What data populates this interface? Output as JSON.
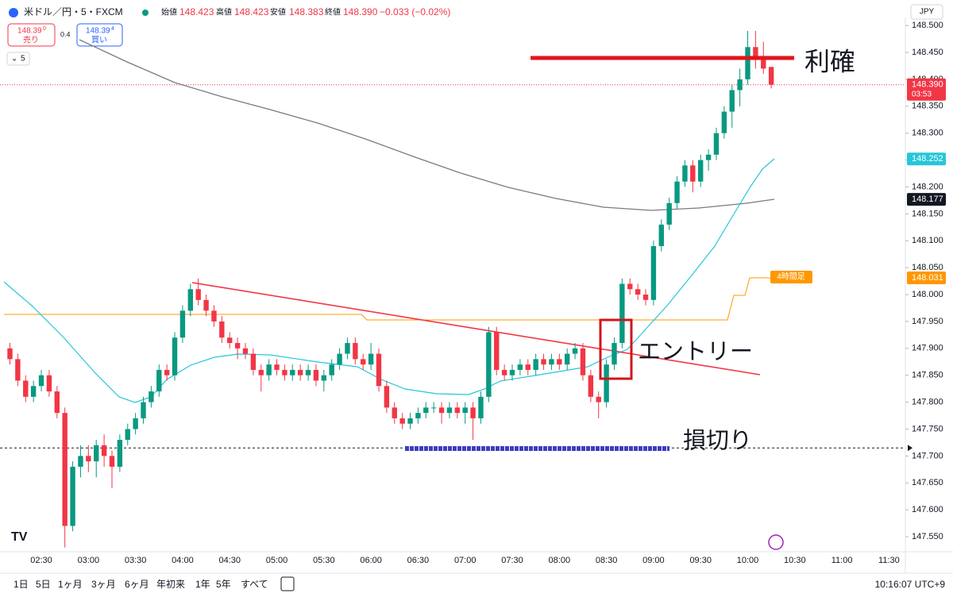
{
  "header": {
    "symbol": "米ドル／円・5・FXCM",
    "open_label": "始値",
    "open": "148.423",
    "high_label": "高値",
    "high": "148.423",
    "low_label": "安値",
    "low": "148.383",
    "close_label": "終値",
    "close": "148.390",
    "change": "−0.033 (−0.02%)",
    "sell_price": "148.39",
    "sell_pip": "0",
    "sell_label": "売り",
    "spread": "0.4",
    "buy_price": "148.39",
    "buy_pip": "4",
    "buy_label": "買い",
    "interval": "5",
    "currency": "JPY"
  },
  "toolbar": {
    "ranges": [
      "1日",
      "5日",
      "1ヶ月",
      "3ヶ月",
      "6ヶ月",
      "年初来",
      "1年",
      "5年",
      "すべて"
    ],
    "clock": "10:16:07 UTC+9"
  },
  "annotations": {
    "take_profit": "利確",
    "entry": "エントリー",
    "stop_loss": "損切り",
    "timeframe_tag": "4時間足"
  },
  "chart_data": {
    "type": "candlestick",
    "up_color": "#089981",
    "down_color": "#f23645",
    "grid": false,
    "categories": [
      null,
      null,
      null,
      null,
      "02:30",
      null,
      null,
      null,
      null,
      null,
      "03:00",
      null,
      null,
      null,
      null,
      null,
      "03:30",
      null,
      null,
      null,
      null,
      null,
      "04:00",
      null,
      null,
      null,
      null,
      null,
      "04:30",
      null,
      null,
      null,
      null,
      null,
      "05:00",
      null,
      null,
      null,
      null,
      null,
      "05:30",
      null,
      null,
      null,
      null,
      null,
      "06:00",
      null,
      null,
      null,
      null,
      null,
      "06:30",
      null,
      null,
      null,
      null,
      null,
      "07:00",
      null,
      null,
      null,
      null,
      null,
      "07:30",
      null,
      null,
      null,
      null,
      null,
      "08:00",
      null,
      null,
      null,
      null,
      null,
      "08:30",
      null,
      null,
      null,
      null,
      null,
      "09:00",
      null,
      null,
      null,
      null,
      null,
      "09:30",
      null,
      null,
      null,
      null,
      null,
      "10:00",
      null,
      null,
      null,
      null,
      null,
      "10:30",
      null,
      null,
      null,
      null,
      null,
      "11:00",
      null,
      null,
      null,
      null,
      null,
      "11:30"
    ],
    "open": [
      147.9,
      147.88,
      147.84,
      147.81,
      147.83,
      147.85,
      147.82,
      147.78,
      147.57,
      147.68,
      147.7,
      147.69,
      147.72,
      147.7,
      147.68,
      147.73,
      147.75,
      147.77,
      147.8,
      147.82,
      147.86,
      147.85,
      147.92,
      147.97,
      148.01,
      147.99,
      147.97,
      147.95,
      147.92,
      147.91,
      147.9,
      147.89,
      147.86,
      147.85,
      147.87,
      147.86,
      147.85,
      147.86,
      147.85,
      147.86,
      147.84,
      147.85,
      147.87,
      147.89,
      147.91,
      147.88,
      147.87,
      147.89,
      147.83,
      147.79,
      147.77,
      147.76,
      147.77,
      147.78,
      147.79,
      147.79,
      147.78,
      147.79,
      147.78,
      147.79,
      147.77,
      147.81,
      147.93,
      147.86,
      147.85,
      147.86,
      147.87,
      147.86,
      147.88,
      147.87,
      147.88,
      147.87,
      147.89,
      147.9,
      147.85,
      147.81,
      147.8,
      147.87,
      147.91,
      148.02,
      148.01,
      148.0,
      147.99,
      148.09,
      148.13,
      148.17,
      148.21,
      148.24,
      148.21,
      148.25,
      148.26,
      148.3,
      148.34,
      148.38,
      148.4,
      148.46,
      148.44,
      148.423,
      null,
      null,
      null,
      null,
      null,
      null,
      null,
      null,
      null,
      null,
      null,
      null,
      null,
      null,
      null
    ],
    "high": [
      147.91,
      147.89,
      147.85,
      147.84,
      147.86,
      147.86,
      147.83,
      147.79,
      147.69,
      147.72,
      147.72,
      147.73,
      147.74,
      147.71,
      147.74,
      147.76,
      147.78,
      147.81,
      147.83,
      147.87,
      147.87,
      147.93,
      147.98,
      148.02,
      148.03,
      148.0,
      147.98,
      147.96,
      147.93,
      147.92,
      147.91,
      147.9,
      147.87,
      147.88,
      147.88,
      147.87,
      147.87,
      147.87,
      147.87,
      147.87,
      147.86,
      147.88,
      147.9,
      147.92,
      147.92,
      147.89,
      147.91,
      147.9,
      147.84,
      147.8,
      147.78,
      147.78,
      147.79,
      147.8,
      147.8,
      147.8,
      147.8,
      147.8,
      147.8,
      147.8,
      147.82,
      147.94,
      147.94,
      147.87,
      147.87,
      147.88,
      147.88,
      147.89,
      147.89,
      147.89,
      147.89,
      147.9,
      147.91,
      147.91,
      147.86,
      147.82,
      147.88,
      147.92,
      148.03,
      148.03,
      148.02,
      148.01,
      148.1,
      148.14,
      148.18,
      148.22,
      148.25,
      148.25,
      148.26,
      148.27,
      148.31,
      148.35,
      148.39,
      148.42,
      148.49,
      148.49,
      148.47,
      148.423,
      null,
      null,
      null,
      null,
      null,
      null,
      null,
      null,
      null,
      null,
      null,
      null,
      null,
      null,
      null
    ],
    "low": [
      147.87,
      147.83,
      147.8,
      147.8,
      147.82,
      147.81,
      147.77,
      147.53,
      147.56,
      147.66,
      147.67,
      147.66,
      147.68,
      147.64,
      147.67,
      147.72,
      147.74,
      147.76,
      147.79,
      147.81,
      147.84,
      147.84,
      147.91,
      147.96,
      147.98,
      147.96,
      147.94,
      147.91,
      147.9,
      147.88,
      147.88,
      147.85,
      147.82,
      147.84,
      147.85,
      147.84,
      147.84,
      147.84,
      147.84,
      147.83,
      147.82,
      147.84,
      147.86,
      147.88,
      147.87,
      147.86,
      147.86,
      147.82,
      147.78,
      147.76,
      147.75,
      147.75,
      147.76,
      147.77,
      147.78,
      147.76,
      147.77,
      147.77,
      147.76,
      147.73,
      147.76,
      147.8,
      147.85,
      147.84,
      147.84,
      147.85,
      147.85,
      147.85,
      147.86,
      147.86,
      147.86,
      147.86,
      147.88,
      147.84,
      147.8,
      147.77,
      147.79,
      147.86,
      147.9,
      148.0,
      147.99,
      147.98,
      147.98,
      148.08,
      148.12,
      148.16,
      148.2,
      148.19,
      148.2,
      148.23,
      148.25,
      148.29,
      148.31,
      148.35,
      148.39,
      148.42,
      148.41,
      148.383,
      null,
      null,
      null,
      null,
      null,
      null,
      null,
      null,
      null,
      null,
      null,
      null,
      null,
      null,
      null
    ],
    "close": [
      147.88,
      147.84,
      147.81,
      147.83,
      147.85,
      147.82,
      147.78,
      147.57,
      147.68,
      147.7,
      147.69,
      147.72,
      147.7,
      147.68,
      147.73,
      147.75,
      147.77,
      147.8,
      147.82,
      147.86,
      147.85,
      147.92,
      147.97,
      148.01,
      147.99,
      147.97,
      147.95,
      147.92,
      147.91,
      147.9,
      147.89,
      147.86,
      147.85,
      147.87,
      147.86,
      147.85,
      147.86,
      147.85,
      147.86,
      147.84,
      147.85,
      147.87,
      147.89,
      147.91,
      147.88,
      147.87,
      147.89,
      147.83,
      147.79,
      147.77,
      147.76,
      147.77,
      147.78,
      147.79,
      147.79,
      147.78,
      147.79,
      147.78,
      147.79,
      147.77,
      147.81,
      147.93,
      147.86,
      147.85,
      147.86,
      147.87,
      147.86,
      147.88,
      147.87,
      147.88,
      147.87,
      147.89,
      147.9,
      147.85,
      147.81,
      147.8,
      147.87,
      147.91,
      148.02,
      148.01,
      148.0,
      147.99,
      148.09,
      148.13,
      148.17,
      148.21,
      148.24,
      148.21,
      148.25,
      148.26,
      148.3,
      148.34,
      148.38,
      148.4,
      148.46,
      148.44,
      148.42,
      148.39,
      null,
      null,
      null,
      null,
      null,
      null,
      null,
      null,
      null,
      null,
      null,
      null,
      null,
      null,
      null
    ],
    "ylim": [
      147.522,
      148.515
    ],
    "yticks": [
      {
        "value": 148.5,
        "label": "148.500"
      },
      {
        "value": 148.45,
        "label": "148.450"
      },
      {
        "value": 148.4,
        "label": "148.400"
      },
      {
        "value": 148.35,
        "label": "148.350"
      },
      {
        "value": 148.3,
        "label": "148.300"
      },
      {
        "value": 148.25,
        "label": "148.250"
      },
      {
        "value": 148.2,
        "label": "148.200"
      },
      {
        "value": 148.15,
        "label": "148.150"
      },
      {
        "value": 148.1,
        "label": "148.100"
      },
      {
        "value": 148.05,
        "label": "148.050"
      },
      {
        "value": 148.0,
        "label": "148.000"
      },
      {
        "value": 147.95,
        "label": "147.950"
      },
      {
        "value": 147.9,
        "label": "147.900"
      },
      {
        "value": 147.85,
        "label": "147.850"
      },
      {
        "value": 147.8,
        "label": "147.800"
      },
      {
        "value": 147.75,
        "label": "147.750"
      },
      {
        "value": 147.7,
        "label": "147.700"
      },
      {
        "value": 147.65,
        "label": "147.650"
      },
      {
        "value": 147.6,
        "label": "147.600"
      },
      {
        "value": 147.55,
        "label": "147.550"
      }
    ],
    "price_labels": [
      {
        "value": 148.39,
        "label": "148.390",
        "color": "#f23645"
      },
      {
        "value": 148.252,
        "label": "148.252",
        "color": "#26c6da"
      },
      {
        "value": 148.177,
        "label": "148.177",
        "color": "#131722"
      },
      {
        "value": 148.031,
        "label": "148.031",
        "color": "#ff9800"
      }
    ],
    "countdown": "03:53",
    "alert_line": 147.715
  }
}
